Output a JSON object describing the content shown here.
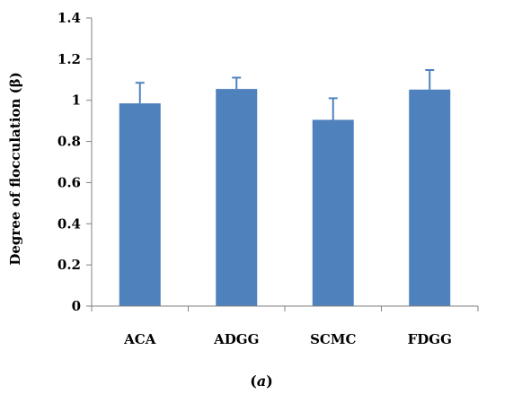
{
  "chart_data": {
    "type": "bar",
    "categories": [
      "ACA",
      "ADGG",
      "SCMC",
      "FDGG"
    ],
    "values": [
      0.985,
      1.055,
      0.905,
      1.052
    ],
    "error_plus": [
      0.1,
      0.055,
      0.105,
      0.095
    ],
    "ylabel": "Degree of flocculation (β)",
    "xlabel": "",
    "ylim": [
      0,
      1.4
    ],
    "yticks": [
      0,
      0.2,
      0.4,
      0.6,
      0.8,
      1,
      1.2,
      1.4
    ],
    "ytick_labels": [
      "0",
      "0.2",
      "0.4",
      "0.6",
      "0.8",
      "1",
      "1.2",
      "1.4"
    ],
    "bar_color": "#4f81bd",
    "grid": false,
    "legend": "none"
  },
  "caption": "(a)"
}
